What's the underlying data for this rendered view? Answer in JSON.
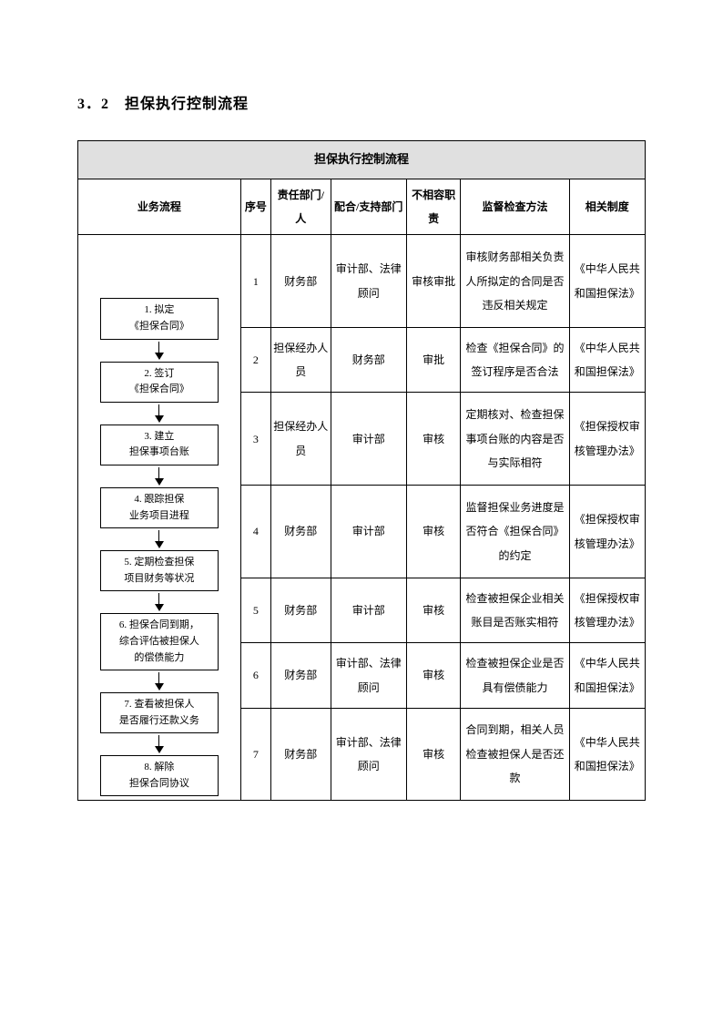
{
  "heading": "3．2　担保执行控制流程",
  "table": {
    "title": "担保执行控制流程",
    "headers": {
      "flow": "业务流程",
      "seq": "序号",
      "resp": "责任部门/人",
      "support": "配合/支持部门",
      "incompat": "不相容职责",
      "method": "监督检查方法",
      "related": "相关制度"
    },
    "flowchart": [
      "1. 拟定\n《担保合同》",
      "2. 签订\n《担保合同》",
      "3. 建立\n担保事项台账",
      "4. 跟踪担保\n业务项目进程",
      "5. 定期检查担保\n项目财务等状况",
      "6. 担保合同到期，\n综合评估被担保人\n的偿债能力",
      "7. 查看被担保人\n是否履行还款义务",
      "8. 解除\n担保合同协议"
    ],
    "rows": [
      {
        "seq": "1",
        "resp": "财务部",
        "support": "审计部、法律顾问",
        "incompat": "审核审批",
        "method": "审核财务部相关负责人所拟定的合同是否违反相关规定",
        "related": "《中华人民共和国担保法》"
      },
      {
        "seq": "2",
        "resp": "担保经办人员",
        "support": "财务部",
        "incompat": "审批",
        "method": "检查《担保合同》的签订程序是否合法",
        "related": "《中华人民共和国担保法》"
      },
      {
        "seq": "3",
        "resp": "担保经办人员",
        "support": "审计部",
        "incompat": "审核",
        "method": "定期核对、检查担保事项台账的内容是否与实际相符",
        "related": "《担保授权审核管理办法》"
      },
      {
        "seq": "4",
        "resp": "财务部",
        "support": "审计部",
        "incompat": "审核",
        "method": "监督担保业务进度是否符合《担保合同》的约定",
        "related": "《担保授权审核管理办法》"
      },
      {
        "seq": "5",
        "resp": "财务部",
        "support": "审计部",
        "incompat": "审核",
        "method": "检查被担保企业相关账目是否账实相符",
        "related": "《担保授权审核管理办法》"
      },
      {
        "seq": "6",
        "resp": "财务部",
        "support": "审计部、法律顾问",
        "incompat": "审核",
        "method": "检查被担保企业是否具有偿债能力",
        "related": "《中华人民共和国担保法》"
      },
      {
        "seq": "7",
        "resp": "财务部",
        "support": "审计部、法律顾问",
        "incompat": "审核",
        "method": "合同到期，相关人员检查被担保人是否还款",
        "related": "《中华人民共和国担保法》"
      }
    ]
  }
}
